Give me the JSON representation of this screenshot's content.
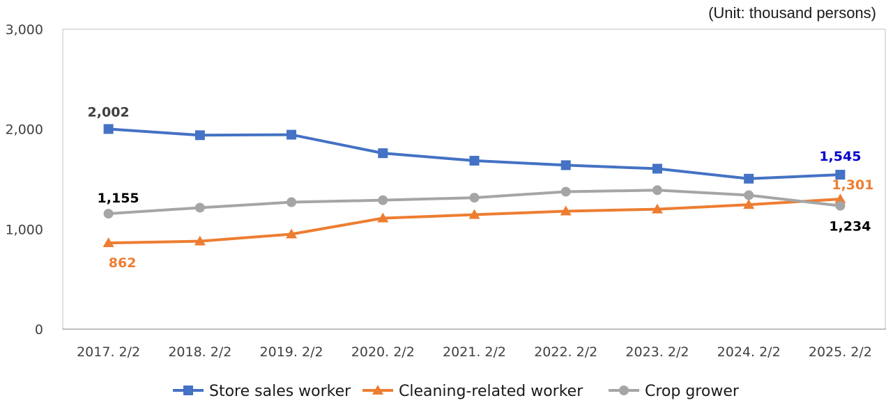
{
  "chart_data": {
    "type": "line",
    "unit_note": "(Unit: thousand persons)",
    "categories": [
      "2017. 2/2",
      "2018. 2/2",
      "2019. 2/2",
      "2020. 2/2",
      "2021. 2/2",
      "2022. 2/2",
      "2023. 2/2",
      "2024. 2/2",
      "2025. 2/2"
    ],
    "ylim": [
      0,
      3000
    ],
    "yticks": [
      "0",
      "1,000",
      "2,000",
      "3,000"
    ],
    "grid": false,
    "legend_position": "bottom",
    "series": [
      {
        "name": "Store sales worker",
        "color": "#4472c4",
        "marker": "square",
        "values": [
          2002,
          1940,
          1945,
          1760,
          1685,
          1640,
          1605,
          1505,
          1545
        ],
        "data_labels": [
          {
            "index": 0,
            "text": "2,002",
            "color": "#404040"
          },
          {
            "index": 8,
            "text": "1,545",
            "color": "#0000cc"
          }
        ]
      },
      {
        "name": "Cleaning-related worker",
        "color": "#ed7d31",
        "marker": "triangle",
        "values": [
          862,
          880,
          950,
          1110,
          1145,
          1180,
          1200,
          1245,
          1301
        ],
        "data_labels": [
          {
            "index": 0,
            "text": "862",
            "color": "#ed7d31"
          },
          {
            "index": 8,
            "text": "1,301",
            "color": "#ed7d31"
          }
        ]
      },
      {
        "name": "Crop grower",
        "color": "#a5a5a5",
        "marker": "circle",
        "values": [
          1155,
          1215,
          1270,
          1290,
          1315,
          1375,
          1390,
          1340,
          1234
        ],
        "data_labels": [
          {
            "index": 0,
            "text": "1,155",
            "color": "#000000"
          },
          {
            "index": 8,
            "text": "1,234",
            "color": "#000000"
          }
        ]
      }
    ]
  }
}
